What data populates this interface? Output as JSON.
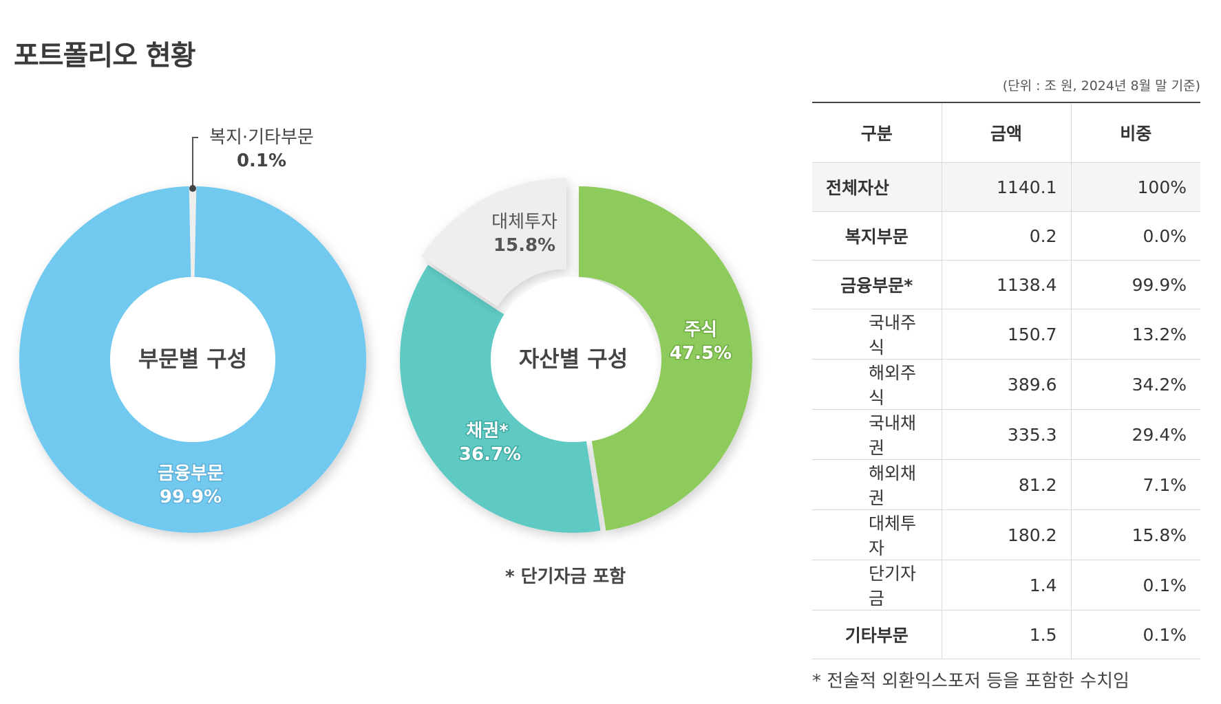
{
  "page": {
    "title": "포트폴리오 현황",
    "unit_note": "(단위 : 조 원, 2024년 8월 말 기준)",
    "mid_footnote": "* 단기자금 포함",
    "table_footnote": "* 전술적 외환익스포저 등을 포함한 수치임"
  },
  "chart_data": [
    {
      "type": "pie",
      "center_label": "부문별 구성",
      "slices": [
        {
          "name": "금융부문",
          "value": 99.9,
          "label": "99.9%",
          "color": "#72c9f0"
        },
        {
          "name": "복지·기타부문",
          "value": 0.1,
          "label": "0.1%",
          "color": "#eeeeee"
        }
      ]
    },
    {
      "type": "pie",
      "center_label": "자산별 구성",
      "slices": [
        {
          "name": "주식",
          "value": 47.5,
          "label": "47.5%",
          "color": "#8dcb5c"
        },
        {
          "name": "채권*",
          "value": 36.7,
          "label": "36.7%",
          "color": "#5ecac4"
        },
        {
          "name": "대체투자",
          "value": 15.8,
          "label": "15.8%",
          "color": "#eeeeee"
        }
      ]
    }
  ],
  "table": {
    "headers": [
      "구분",
      "금액",
      "비중"
    ],
    "rows": [
      {
        "name": "전체자산",
        "amount": "1140.1",
        "share": "100%",
        "style": "first"
      },
      {
        "name": "복지부문",
        "amount": "0.2",
        "share": "0.0%",
        "style": "bold"
      },
      {
        "name": "금융부문*",
        "amount": "1138.4",
        "share": "99.9%",
        "style": "bold"
      },
      {
        "name": "국내주식",
        "amount": "150.7",
        "share": "13.2%",
        "style": "indent"
      },
      {
        "name": "해외주식",
        "amount": "389.6",
        "share": "34.2%",
        "style": "indent"
      },
      {
        "name": "국내채권",
        "amount": "335.3",
        "share": "29.4%",
        "style": "indent"
      },
      {
        "name": "해외채권",
        "amount": "81.2",
        "share": "7.1%",
        "style": "indent"
      },
      {
        "name": "대체투자",
        "amount": "180.2",
        "share": "15.8%",
        "style": "indent"
      },
      {
        "name": "단기자금",
        "amount": "1.4",
        "share": "0.1%",
        "style": "indent"
      },
      {
        "name": "기타부문",
        "amount": "1.5",
        "share": "0.1%",
        "style": "bold"
      }
    ]
  }
}
